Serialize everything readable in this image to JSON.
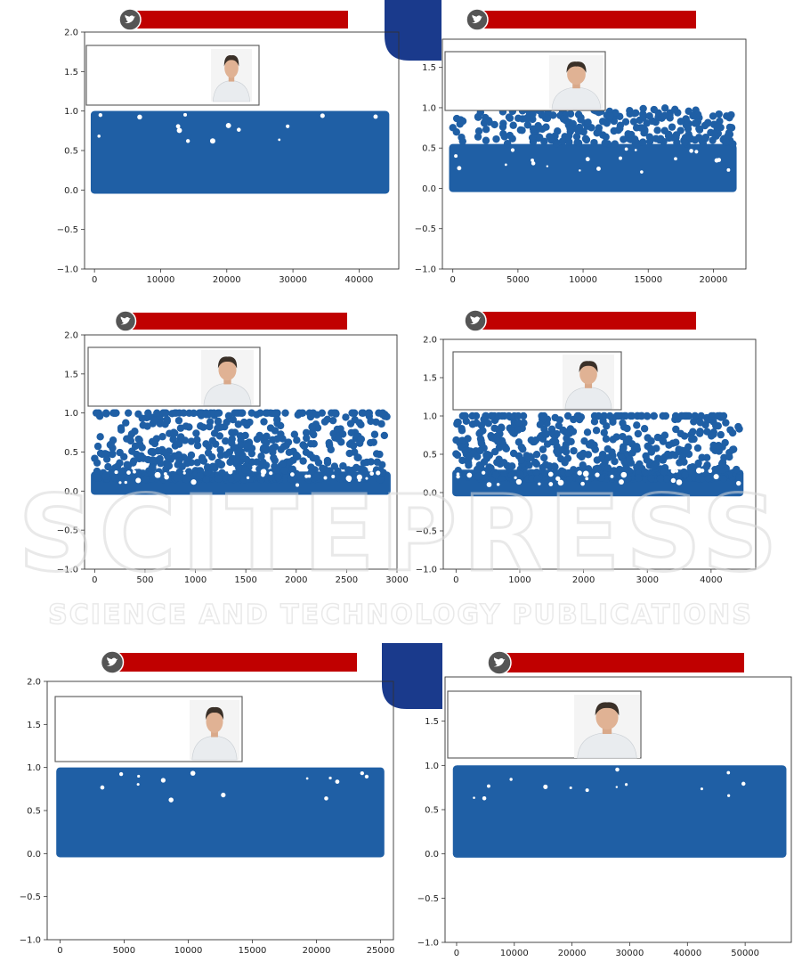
{
  "colors": {
    "point": "#1f5fa5",
    "banner": "#c00000",
    "tab_blue": "#1a3a8c",
    "twitter_circle": "#555555",
    "watermark": "#d8d8d8"
  },
  "watermark": {
    "line1": "SCITEPRESS",
    "line2": "SCIENCE AND TECHNOLOGY PUBLICATIONS"
  },
  "chart_data": [
    {
      "type": "scatter",
      "banner_icon": "twitter-icon",
      "portrait_icon": "candidate-portrait-1",
      "xlim": [
        -1500,
        46000
      ],
      "ylim": [
        -1.0,
        2.0
      ],
      "xticks": [
        0,
        10000,
        20000,
        30000,
        40000
      ],
      "yticks": [
        -1.0,
        -0.5,
        0.0,
        0.5,
        1.0,
        1.5,
        2.0
      ],
      "xtick_labels": [
        "0",
        "10000",
        "20000",
        "30000",
        "40000"
      ],
      "ytick_labels": [
        "−1.0",
        "−0.5",
        "0.0",
        "0.5",
        "1.0",
        "1.5",
        "2.0"
      ],
      "x_max": 44000,
      "dense_top": 1.0,
      "density": "very-dense"
    },
    {
      "type": "scatter",
      "banner_icon": "twitter-icon",
      "portrait_icon": "candidate-portrait-2",
      "xlim": [
        -800,
        22500
      ],
      "ylim": [
        -1.0,
        1.85
      ],
      "xticks": [
        0,
        5000,
        10000,
        15000,
        20000
      ],
      "yticks": [
        -1.0,
        -0.5,
        0.0,
        0.5,
        1.0,
        1.5
      ],
      "xtick_labels": [
        "0",
        "5000",
        "10000",
        "15000",
        "20000"
      ],
      "ytick_labels": [
        "−1.0",
        "−0.5",
        "0.0",
        "0.5",
        "1.0",
        "1.5"
      ],
      "x_max": 21500,
      "dense_top": 0.55,
      "density": "dense-bottom"
    },
    {
      "type": "scatter",
      "banner_icon": "twitter-icon",
      "portrait_icon": "candidate-portrait-3",
      "xlim": [
        -100,
        3000
      ],
      "ylim": [
        -1.0,
        2.0
      ],
      "xticks": [
        0,
        500,
        1000,
        1500,
        2000,
        2500,
        3000
      ],
      "yticks": [
        -1.0,
        -0.5,
        0.0,
        0.5,
        1.0,
        1.5,
        2.0
      ],
      "xtick_labels": [
        "0",
        "500",
        "1000",
        "1500",
        "2000",
        "2500",
        "3000"
      ],
      "ytick_labels": [
        "−1.0",
        "−0.5",
        "0.0",
        "0.5",
        "1.0",
        "1.5",
        "2.0"
      ],
      "x_max": 2900,
      "dense_top": 0.25,
      "density": "sparse"
    },
    {
      "type": "scatter",
      "banner_icon": "twitter-icon",
      "portrait_icon": "candidate-portrait-4",
      "xlim": [
        -200,
        4700
      ],
      "ylim": [
        -1.0,
        2.0
      ],
      "xticks": [
        0,
        1000,
        2000,
        3000,
        4000
      ],
      "yticks": [
        -1.0,
        -0.5,
        0.0,
        0.5,
        1.0,
        1.5,
        2.0
      ],
      "xtick_labels": [
        "0",
        "1000",
        "2000",
        "3000",
        "4000"
      ],
      "ytick_labels": [
        "−1.0",
        "−0.5",
        "0.0",
        "0.5",
        "1.0",
        "1.5",
        "2.0"
      ],
      "x_max": 4450,
      "dense_top": 0.3,
      "density": "sparse"
    },
    {
      "type": "scatter",
      "banner_icon": "twitter-icon",
      "portrait_icon": "candidate-portrait-1",
      "xlim": [
        -1000,
        26000
      ],
      "ylim": [
        -1.0,
        2.0
      ],
      "xticks": [
        0,
        5000,
        10000,
        15000,
        20000,
        25000
      ],
      "yticks": [
        -1.0,
        -0.5,
        0.0,
        0.5,
        1.0,
        1.5,
        2.0
      ],
      "xtick_labels": [
        "0",
        "5000",
        "10000",
        "15000",
        "20000",
        "25000"
      ],
      "ytick_labels": [
        "−1.0",
        "−0.5",
        "0.0",
        "0.5",
        "1.0",
        "1.5",
        "2.0"
      ],
      "x_max": 25000,
      "dense_top": 0.85,
      "density": "very-dense"
    },
    {
      "type": "scatter",
      "banner_icon": "twitter-icon",
      "portrait_icon": "candidate-portrait-2",
      "xlim": [
        -2000,
        58000
      ],
      "ylim": [
        -1.0,
        2.0
      ],
      "xticks": [
        0,
        10000,
        20000,
        30000,
        40000,
        50000
      ],
      "yticks": [
        -1.0,
        -0.5,
        0.0,
        0.5,
        1.0,
        1.5
      ],
      "xtick_labels": [
        "0",
        "10000",
        "20000",
        "30000",
        "40000",
        "50000"
      ],
      "ytick_labels": [
        "−1.0",
        "−0.5",
        "0.0",
        "0.5",
        "1.0",
        "1.5"
      ],
      "x_max": 56500,
      "dense_top": 1.0,
      "density": "very-dense"
    }
  ]
}
